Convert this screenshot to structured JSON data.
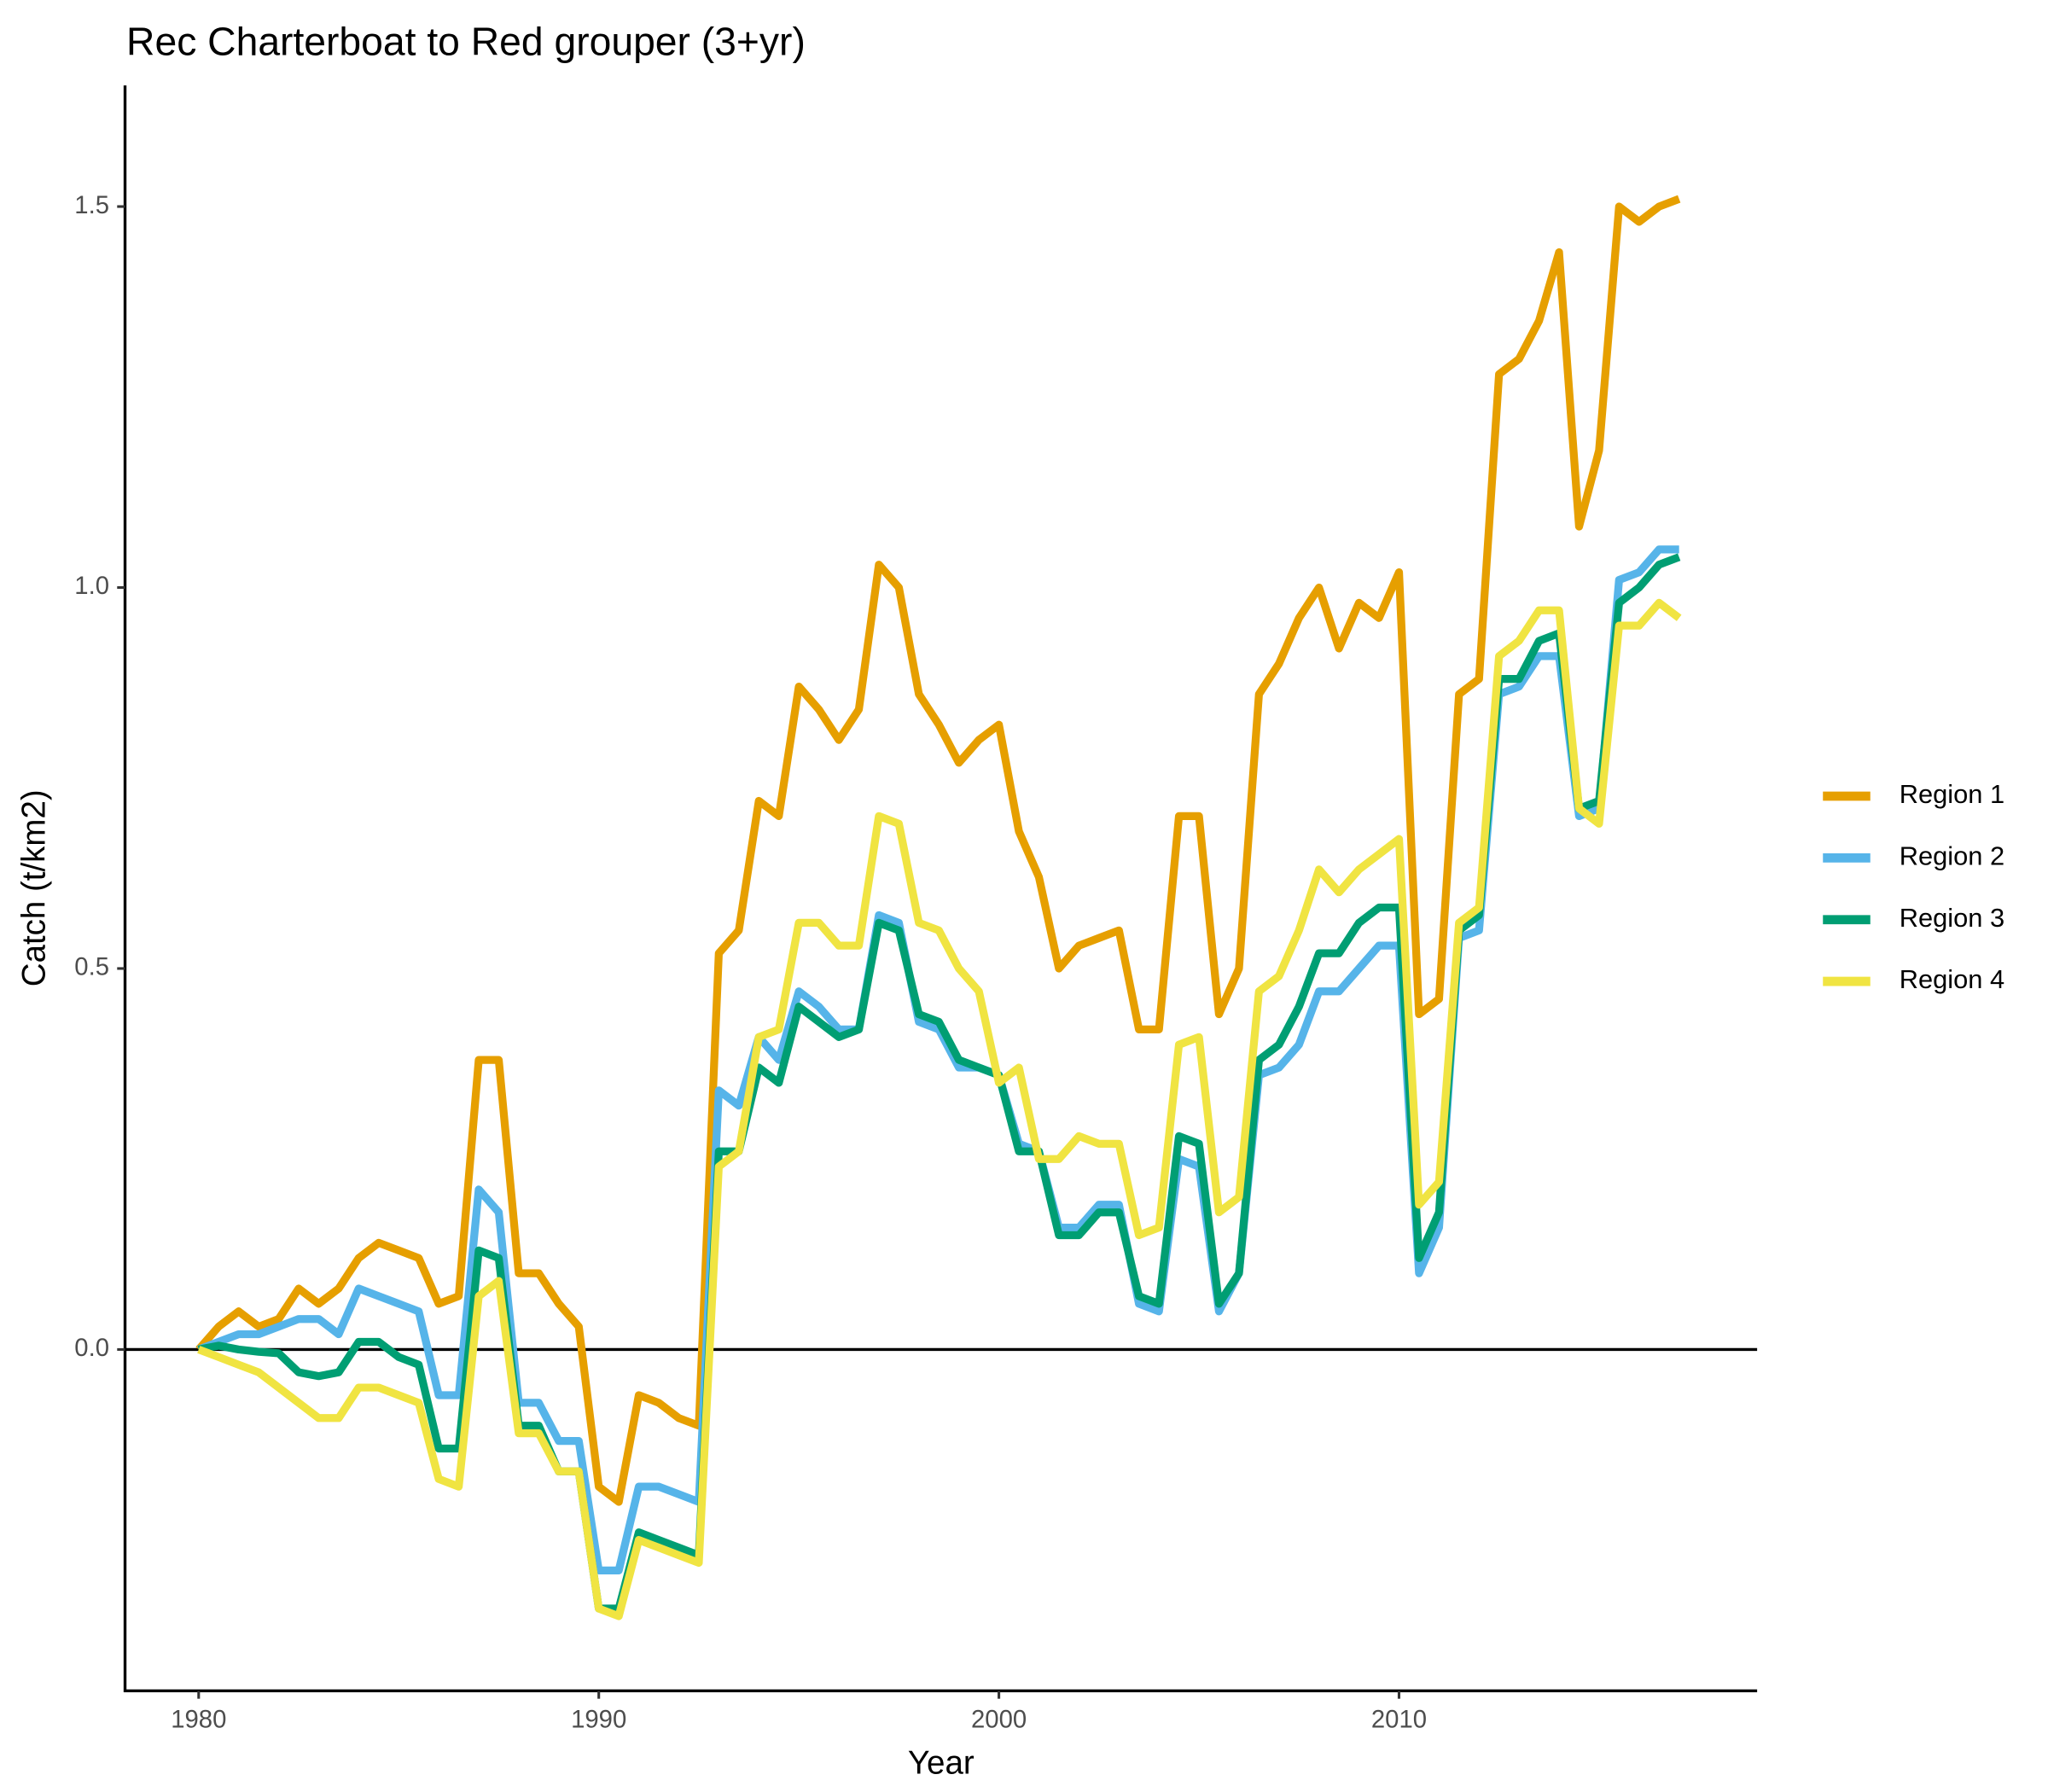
{
  "chart_data": {
    "type": "line",
    "title": "Rec Charterboat to Red grouper (3+yr)",
    "x_label": "Year",
    "y_label": "Catch (t/km2)",
    "x": [
      1980,
      1980.5,
      1981,
      1981.5,
      1982,
      1982.5,
      1983,
      1983.5,
      1984,
      1984.5,
      1985,
      1985.5,
      1986,
      1986.5,
      1987,
      1987.5,
      1988,
      1988.5,
      1989,
      1989.5,
      1990,
      1990.5,
      1991,
      1991.5,
      1992,
      1992.5,
      1993,
      1993.5,
      1994,
      1994.5,
      1995,
      1995.5,
      1996,
      1996.5,
      1997,
      1997.5,
      1998,
      1998.5,
      1999,
      1999.5,
      2000,
      2000.5,
      2001,
      2001.5,
      2002,
      2002.5,
      2003,
      2003.5,
      2004,
      2004.5,
      2005,
      2005.5,
      2006,
      2006.5,
      2007,
      2007.5,
      2008,
      2008.5,
      2009,
      2009.5,
      2010,
      2010.5,
      2011,
      2011.5,
      2012,
      2012.5,
      2013,
      2013.5,
      2014,
      2014.5,
      2015,
      2015.5,
      2016,
      2016.5,
      2017
    ],
    "series": [
      {
        "name": "Region 1",
        "color": "#E69F00",
        "values": [
          0,
          0.03,
          0.05,
          0.03,
          0.04,
          0.08,
          0.06,
          0.08,
          0.12,
          0.14,
          0.13,
          0.12,
          0.06,
          0.07,
          0.38,
          0.38,
          0.1,
          0.1,
          0.06,
          0.03,
          -0.18,
          -0.2,
          -0.06,
          -0.07,
          -0.09,
          -0.1,
          0.52,
          0.55,
          0.72,
          0.7,
          0.87,
          0.84,
          0.8,
          0.84,
          1.03,
          1.0,
          0.86,
          0.82,
          0.77,
          0.8,
          0.82,
          0.68,
          0.62,
          0.5,
          0.53,
          0.54,
          0.55,
          0.42,
          0.42,
          0.7,
          0.7,
          0.44,
          0.5,
          0.86,
          0.9,
          0.96,
          1.0,
          0.92,
          0.98,
          0.96,
          1.02,
          0.44,
          0.46,
          0.86,
          0.88,
          1.28,
          1.3,
          1.35,
          1.44,
          1.08,
          1.18,
          1.5,
          1.48,
          1.5,
          1.51
        ]
      },
      {
        "name": "Region 2",
        "color": "#56B4E9",
        "values": [
          0,
          0.01,
          0.02,
          0.02,
          0.03,
          0.04,
          0.04,
          0.02,
          0.08,
          0.07,
          0.06,
          0.05,
          -0.06,
          -0.06,
          0.21,
          0.18,
          -0.07,
          -0.07,
          -0.12,
          -0.12,
          -0.29,
          -0.29,
          -0.18,
          -0.18,
          -0.19,
          -0.2,
          0.34,
          0.32,
          0.41,
          0.38,
          0.47,
          0.45,
          0.42,
          0.42,
          0.57,
          0.56,
          0.43,
          0.42,
          0.37,
          0.37,
          0.36,
          0.27,
          0.26,
          0.16,
          0.16,
          0.19,
          0.19,
          0.06,
          0.05,
          0.25,
          0.24,
          0.05,
          0.1,
          0.36,
          0.37,
          0.4,
          0.47,
          0.47,
          0.5,
          0.53,
          0.53,
          0.1,
          0.16,
          0.54,
          0.55,
          0.86,
          0.87,
          0.91,
          0.91,
          0.7,
          0.71,
          1.01,
          1.02,
          1.05,
          1.05
        ]
      },
      {
        "name": "Region 3",
        "color": "#009E73",
        "values": [
          0,
          0.005,
          0,
          -0.003,
          -0.005,
          -0.03,
          -0.035,
          -0.03,
          0.01,
          0.01,
          -0.01,
          -0.02,
          -0.13,
          -0.13,
          0.13,
          0.12,
          -0.1,
          -0.1,
          -0.16,
          -0.16,
          -0.34,
          -0.34,
          -0.24,
          -0.25,
          -0.26,
          -0.27,
          0.26,
          0.26,
          0.37,
          0.35,
          0.45,
          0.43,
          0.41,
          0.42,
          0.56,
          0.55,
          0.44,
          0.43,
          0.38,
          0.37,
          0.36,
          0.26,
          0.26,
          0.15,
          0.15,
          0.18,
          0.18,
          0.07,
          0.06,
          0.28,
          0.27,
          0.06,
          0.1,
          0.38,
          0.4,
          0.45,
          0.52,
          0.52,
          0.56,
          0.58,
          0.58,
          0.12,
          0.18,
          0.55,
          0.57,
          0.88,
          0.88,
          0.93,
          0.94,
          0.71,
          0.72,
          0.98,
          1.0,
          1.03,
          1.04
        ]
      },
      {
        "name": "Region 4",
        "color": "#F0E442",
        "values": [
          0,
          -0.01,
          -0.02,
          -0.03,
          -0.05,
          -0.07,
          -0.09,
          -0.09,
          -0.05,
          -0.05,
          -0.06,
          -0.07,
          -0.17,
          -0.18,
          0.07,
          0.09,
          -0.11,
          -0.11,
          -0.16,
          -0.16,
          -0.34,
          -0.35,
          -0.25,
          -0.26,
          -0.27,
          -0.28,
          0.24,
          0.26,
          0.41,
          0.42,
          0.56,
          0.56,
          0.53,
          0.53,
          0.7,
          0.69,
          0.56,
          0.55,
          0.5,
          0.47,
          0.35,
          0.37,
          0.25,
          0.25,
          0.28,
          0.27,
          0.27,
          0.15,
          0.16,
          0.4,
          0.41,
          0.18,
          0.2,
          0.47,
          0.49,
          0.55,
          0.63,
          0.6,
          0.63,
          0.65,
          0.67,
          0.19,
          0.22,
          0.56,
          0.58,
          0.91,
          0.93,
          0.97,
          0.97,
          0.71,
          0.69,
          0.95,
          0.95,
          0.98,
          0.96
        ]
      }
    ],
    "xlim": [
      1978.16,
      2018.95
    ],
    "xticks": [
      1980,
      1990,
      2000,
      2010
    ],
    "ylim": [
      -0.448,
      1.659
    ],
    "yticks": [
      {
        "value": 0,
        "label": "0.0"
      },
      0.5,
      {
        "value": 1,
        "label": "1.0"
      },
      1.5
    ],
    "hline": 0,
    "grid": false,
    "legend": "right"
  }
}
